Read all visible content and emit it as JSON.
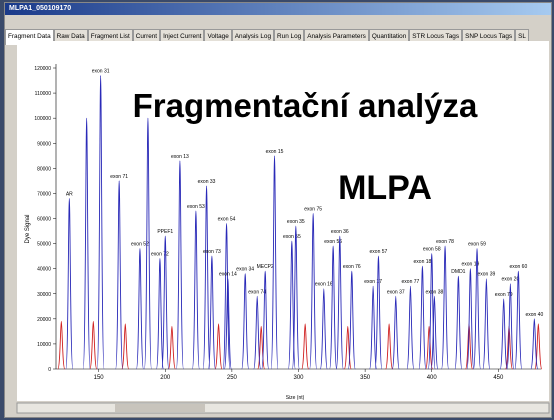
{
  "window": {
    "title": "MLPA1_050109170"
  },
  "tabs": [
    "Fragment Data",
    "Raw Data",
    "Fragment List",
    "Current",
    "Inject Current",
    "Voltage",
    "Analysis Log",
    "Run Log",
    "Analysis Parameters",
    "Quantitation",
    "STR Locus Tags",
    "SNP Locus Tags",
    "SL"
  ],
  "chart_data": {
    "type": "peaks",
    "y_label": "Dye Signal",
    "x_label": "Size (nt)",
    "xlim": [
      118,
      482
    ],
    "ylim": [
      0,
      120000
    ],
    "xticks": [
      150,
      200,
      250,
      300,
      350,
      400,
      450
    ],
    "yticks": [
      0,
      10000,
      20000,
      30000,
      40000,
      50000,
      60000,
      70000,
      80000,
      90000,
      100000,
      110000,
      120000
    ],
    "series": [
      {
        "color": "#2a2ab8",
        "x": [
          128,
          141,
          151.5,
          165.4,
          181,
          187,
          196,
          200,
          211,
          223,
          231,
          235,
          246,
          247,
          260,
          269,
          275,
          282,
          295,
          298,
          311,
          319,
          326,
          331,
          340,
          356,
          360,
          373,
          384,
          393,
          400,
          402,
          410,
          420,
          429,
          434,
          441,
          454,
          459,
          465,
          477
        ],
        "values": [
          68000,
          100000,
          117000,
          75000,
          48000,
          100000,
          44000,
          53000,
          83000,
          63000,
          73000,
          45000,
          58000,
          36000,
          38000,
          29000,
          39000,
          85000,
          51000,
          57000,
          62000,
          32000,
          49000,
          53000,
          39000,
          33000,
          45000,
          29000,
          33000,
          41000,
          46000,
          29000,
          49000,
          37000,
          40000,
          48000,
          36000,
          28000,
          34000,
          39000,
          20000
        ],
        "labels": [
          "AR",
          null,
          "exon 31",
          "exon 71",
          "exon 52",
          null,
          "exon 72",
          "PPEF1",
          "exon 13",
          "exon 53",
          "exon 33",
          "exon 73",
          "exon 54",
          "exon 14",
          "exon 34",
          "exon 74",
          "MECP2",
          "exon 15",
          "exon 55",
          "exon 35",
          "exon 75",
          "exon 16",
          "exon 56",
          "exon 36",
          "exon 76",
          "exon 17",
          "exon 57",
          "exon 37",
          "exon 77",
          "exon 18",
          "exon 58",
          "exon 38",
          "exon 78",
          "DMD1",
          "exon 19",
          "exon 59",
          "exon 39",
          "exon 79",
          "exon 20",
          "exon 60",
          "exon 40"
        ]
      },
      {
        "color": "#d02020",
        "x": [
          122,
          146,
          170,
          205,
          240,
          272,
          305,
          337,
          368,
          398,
          428,
          458,
          480
        ],
        "values": [
          19000,
          19000,
          18000,
          17000,
          18000,
          17000,
          18000,
          17000,
          18000,
          17000,
          18000,
          17000,
          18000
        ]
      }
    ]
  },
  "overlay": {
    "title": "Fragmentační analýza",
    "subtitle": "MLPA"
  }
}
